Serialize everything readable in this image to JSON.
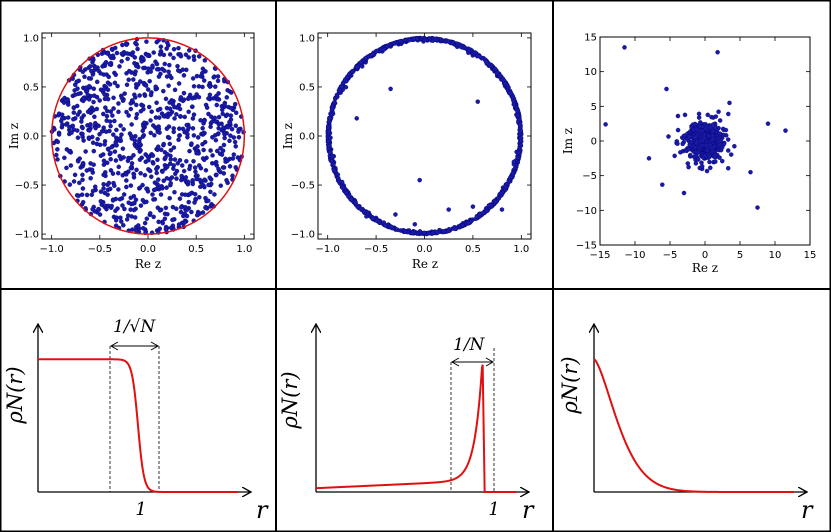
{
  "colors": {
    "points": "#1a1aa8",
    "curve": "#e01010",
    "frame": "#000000"
  },
  "chart_data": [
    {
      "panel": "top-left",
      "type": "scatter",
      "distribution": "uniform-disk",
      "n_points": 1000,
      "radius": 1.0,
      "xlabel": "Re z",
      "ylabel": "Im z",
      "xlim": [
        -1.1,
        1.1
      ],
      "ylim": [
        -1.05,
        1.05
      ],
      "xticks": [
        -1.0,
        -0.5,
        0.0,
        0.5,
        1.0
      ],
      "yticks": [
        -1.0,
        -0.5,
        0.0,
        0.5,
        1.0
      ],
      "xtick_labels": [
        "−1.0",
        "−0.5",
        "0.0",
        "0.5",
        "1.0"
      ],
      "ytick_labels": [
        "−1.0",
        "−0.5",
        "0.0",
        "0.5",
        "1.0"
      ],
      "circle": {
        "center": [
          0,
          0
        ],
        "radius": 1.0
      }
    },
    {
      "panel": "top-middle",
      "type": "scatter",
      "distribution": "near-unit-circle",
      "n_points": 1000,
      "radius": 1.0,
      "interior_points": [
        [
          -0.35,
          0.48
        ],
        [
          0.55,
          0.35
        ],
        [
          -0.7,
          0.18
        ],
        [
          -0.05,
          -0.45
        ],
        [
          -0.6,
          -0.82
        ],
        [
          0.25,
          -0.75
        ],
        [
          -0.1,
          -0.9
        ],
        [
          0.8,
          -0.75
        ],
        [
          -0.3,
          -0.8
        ],
        [
          0.5,
          -0.72
        ]
      ],
      "xlabel": "Re z",
      "ylabel": "Im z",
      "xlim": [
        -1.1,
        1.1
      ],
      "ylim": [
        -1.05,
        1.05
      ],
      "xticks": [
        -1.0,
        -0.5,
        0.0,
        0.5,
        1.0
      ],
      "yticks": [
        -1.0,
        -0.5,
        0.0,
        0.5,
        1.0
      ],
      "xtick_labels": [
        "−1.0",
        "−0.5",
        "0.0",
        "0.5",
        "1.0"
      ],
      "ytick_labels": [
        "−1.0",
        "−0.5",
        "0.0",
        "0.5",
        "1.0"
      ],
      "circle": {
        "center": [
          0,
          0
        ],
        "radius": 1.0
      }
    },
    {
      "panel": "top-right",
      "type": "scatter",
      "distribution": "heavy-tailed-cluster",
      "n_points": 1000,
      "outliers": [
        [
          -11.5,
          13.5
        ],
        [
          1.8,
          12.8
        ],
        [
          -14.2,
          2.4
        ],
        [
          11.5,
          1.5
        ],
        [
          -5.5,
          7.5
        ],
        [
          7.5,
          -9.6
        ],
        [
          -6.1,
          -6.3
        ],
        [
          9.0,
          2.5
        ],
        [
          3.5,
          5.5
        ],
        [
          -8.0,
          -2.5
        ],
        [
          6.5,
          -4.5
        ],
        [
          -3.0,
          -7.5
        ]
      ],
      "xlabel": "Re z",
      "ylabel": "Im z",
      "xlim": [
        -15,
        15
      ],
      "ylim": [
        -15,
        15
      ],
      "xticks": [
        -15,
        -10,
        -5,
        0,
        5,
        10,
        15
      ],
      "yticks": [
        -15,
        -10,
        -5,
        0,
        5,
        10,
        15
      ],
      "xtick_labels": [
        "−15",
        "−10",
        "−5",
        "0",
        "5",
        "10",
        "15"
      ],
      "ytick_labels": [
        "−15",
        "−10",
        "−5",
        "0",
        "5",
        "10",
        "15"
      ]
    },
    {
      "panel": "bottom-left",
      "type": "line",
      "ylabel": "ρN(r)",
      "xlabel": "r",
      "x_tick_label": "1",
      "x_tick_value": 1.0,
      "xlim": [
        0,
        2.0
      ],
      "ylim": [
        0,
        1.1
      ],
      "curve": {
        "kind": "step-smooth",
        "edge": 1.0,
        "width": 0.06,
        "plateau": 1.0
      },
      "annotation": {
        "text": "1/√N",
        "from": 0.72,
        "to": 1.25
      }
    },
    {
      "panel": "bottom-middle",
      "type": "line",
      "ylabel": "ρN(r)",
      "xlabel": "r",
      "x_tick_label": "1",
      "x_tick_value": 1.0,
      "xlim": [
        0,
        1.2
      ],
      "ylim": [
        0,
        1.1
      ],
      "curve": {
        "kind": "edge-peak",
        "edge": 1.0
      },
      "annotation": {
        "text": "1/N",
        "from": 0.78,
        "to": 1.04
      }
    },
    {
      "panel": "bottom-right",
      "type": "line",
      "ylabel": "ρN(r)",
      "xlabel": "r",
      "xlim": [
        0,
        1.0
      ],
      "ylim": [
        0,
        1.1
      ],
      "curve": {
        "kind": "decay",
        "scale": 0.18
      }
    }
  ]
}
